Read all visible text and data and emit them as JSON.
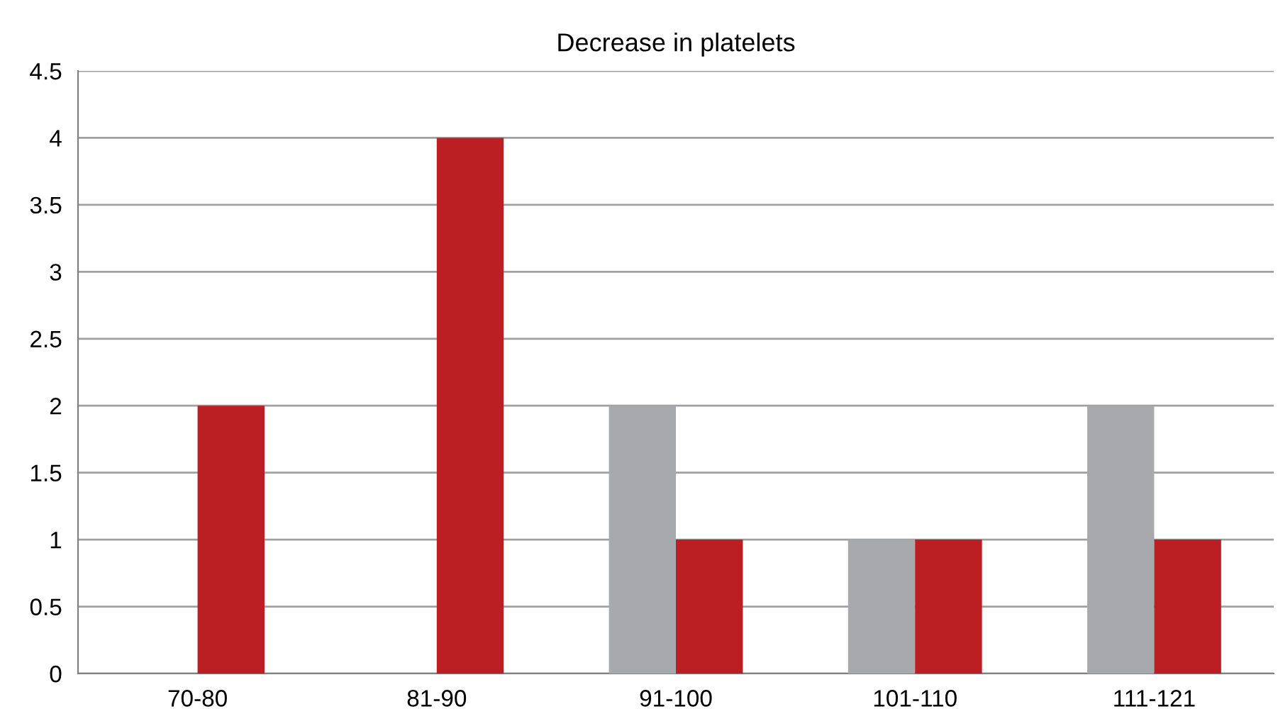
{
  "chart_data": {
    "type": "bar",
    "title": "Decrease in platelets",
    "categories": [
      "70-80",
      "81-90",
      "91-100",
      "101-110",
      "111-121"
    ],
    "series": [
      {
        "color": "#a7a9ac",
        "values": [
          0,
          0,
          2,
          1,
          2
        ]
      },
      {
        "color": "#bb1e23",
        "values": [
          2,
          4,
          1,
          1,
          1
        ]
      }
    ],
    "ylim": [
      0,
      4.5
    ],
    "yticks": [
      0,
      0.5,
      1,
      1.5,
      2,
      2.5,
      3,
      3.5,
      4,
      4.5
    ],
    "grid": "y"
  }
}
